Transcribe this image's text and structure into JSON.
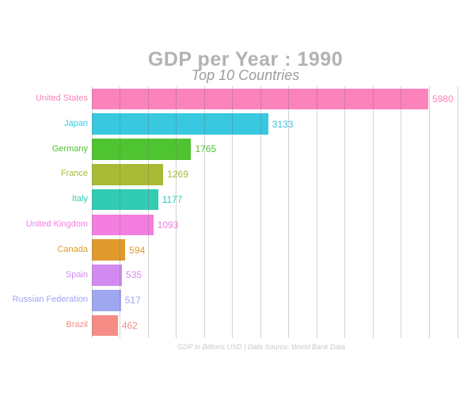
{
  "header": {
    "title": "GDP per Year : 1990",
    "subtitle": "Top 10 Countries"
  },
  "footer": {
    "caption": "GDP In Billions USD | Data Source: World Bank Data"
  },
  "chart_data": {
    "type": "bar",
    "orientation": "horizontal",
    "title": "GDP per Year : 1990",
    "subtitle": "Top 10 Countries",
    "categories": [
      "United States",
      "Japan",
      "Germany",
      "France",
      "Italy",
      "United Kingdom",
      "Canada",
      "Spain",
      "Russian Federation",
      "Brazil"
    ],
    "values": [
      5980,
      3133,
      1765,
      1269,
      1177,
      1093,
      594,
      535,
      517,
      462
    ],
    "colors": [
      "#fb82ba",
      "#38c8e0",
      "#4ec431",
      "#a9ba35",
      "#31ccb3",
      "#f47de0",
      "#e0992d",
      "#d28af0",
      "#9fa7f0",
      "#f68c85"
    ],
    "xlim": [
      0,
      6500
    ],
    "gridline_step": 500,
    "grid": true,
    "legend": "none",
    "value_labels": "outside-end",
    "caption": "GDP In Billions USD | Data Source: World Bank Data",
    "colors_meta": {
      "title_text": "#b2b2b2",
      "subtitle_text": "#9c9c9c",
      "caption_text": "#c9c9c9",
      "gridline": "#cccccc",
      "background": "#ffffff"
    }
  }
}
